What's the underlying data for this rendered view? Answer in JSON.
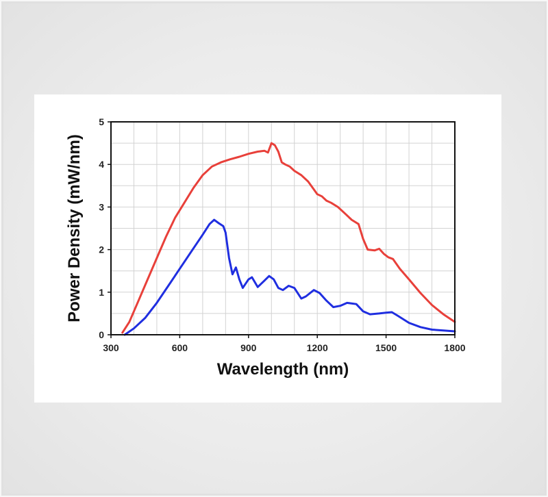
{
  "chart_data": {
    "type": "line",
    "title": "",
    "xlabel": "Wavelength (nm)",
    "ylabel": "Power Density (mW/nm)",
    "xlim": [
      300,
      1800
    ],
    "ylim": [
      0,
      5
    ],
    "xticks": [
      300,
      600,
      900,
      1200,
      1500,
      1800
    ],
    "yticks": [
      0,
      1,
      2,
      3,
      4,
      5
    ],
    "grid": true,
    "legend": "none",
    "colors": {
      "red": "#e8403a",
      "blue": "#1f2ee0"
    },
    "series": [
      {
        "color": "#e8403a",
        "points": [
          [
            350,
            0.05
          ],
          [
            380,
            0.3
          ],
          [
            420,
            0.8
          ],
          [
            460,
            1.3
          ],
          [
            500,
            1.8
          ],
          [
            540,
            2.3
          ],
          [
            580,
            2.75
          ],
          [
            620,
            3.1
          ],
          [
            660,
            3.45
          ],
          [
            700,
            3.75
          ],
          [
            740,
            3.95
          ],
          [
            780,
            4.05
          ],
          [
            820,
            4.12
          ],
          [
            860,
            4.18
          ],
          [
            900,
            4.25
          ],
          [
            940,
            4.3
          ],
          [
            970,
            4.32
          ],
          [
            985,
            4.28
          ],
          [
            1000,
            4.5
          ],
          [
            1015,
            4.45
          ],
          [
            1030,
            4.3
          ],
          [
            1045,
            4.05
          ],
          [
            1060,
            4.0
          ],
          [
            1080,
            3.95
          ],
          [
            1100,
            3.85
          ],
          [
            1130,
            3.75
          ],
          [
            1160,
            3.6
          ],
          [
            1180,
            3.45
          ],
          [
            1200,
            3.3
          ],
          [
            1220,
            3.25
          ],
          [
            1240,
            3.15
          ],
          [
            1260,
            3.1
          ],
          [
            1290,
            3.0
          ],
          [
            1320,
            2.85
          ],
          [
            1350,
            2.7
          ],
          [
            1380,
            2.6
          ],
          [
            1400,
            2.25
          ],
          [
            1420,
            2.0
          ],
          [
            1450,
            1.98
          ],
          [
            1470,
            2.02
          ],
          [
            1490,
            1.9
          ],
          [
            1510,
            1.82
          ],
          [
            1530,
            1.78
          ],
          [
            1560,
            1.55
          ],
          [
            1600,
            1.3
          ],
          [
            1650,
            0.98
          ],
          [
            1700,
            0.7
          ],
          [
            1750,
            0.48
          ],
          [
            1800,
            0.3
          ]
        ]
      },
      {
        "color": "#1f2ee0",
        "points": [
          [
            360,
            0.0
          ],
          [
            400,
            0.15
          ],
          [
            450,
            0.4
          ],
          [
            500,
            0.75
          ],
          [
            550,
            1.15
          ],
          [
            600,
            1.55
          ],
          [
            650,
            1.95
          ],
          [
            700,
            2.35
          ],
          [
            730,
            2.6
          ],
          [
            750,
            2.7
          ],
          [
            770,
            2.62
          ],
          [
            790,
            2.55
          ],
          [
            800,
            2.4
          ],
          [
            815,
            1.8
          ],
          [
            830,
            1.42
          ],
          [
            845,
            1.58
          ],
          [
            860,
            1.3
          ],
          [
            875,
            1.1
          ],
          [
            900,
            1.3
          ],
          [
            915,
            1.35
          ],
          [
            940,
            1.12
          ],
          [
            965,
            1.25
          ],
          [
            990,
            1.38
          ],
          [
            1010,
            1.3
          ],
          [
            1030,
            1.1
          ],
          [
            1050,
            1.05
          ],
          [
            1075,
            1.15
          ],
          [
            1100,
            1.1
          ],
          [
            1130,
            0.85
          ],
          [
            1150,
            0.9
          ],
          [
            1185,
            1.05
          ],
          [
            1210,
            0.98
          ],
          [
            1240,
            0.8
          ],
          [
            1270,
            0.65
          ],
          [
            1300,
            0.68
          ],
          [
            1330,
            0.75
          ],
          [
            1370,
            0.72
          ],
          [
            1400,
            0.55
          ],
          [
            1430,
            0.48
          ],
          [
            1470,
            0.5
          ],
          [
            1500,
            0.52
          ],
          [
            1525,
            0.53
          ],
          [
            1550,
            0.45
          ],
          [
            1600,
            0.28
          ],
          [
            1650,
            0.18
          ],
          [
            1700,
            0.12
          ],
          [
            1750,
            0.1
          ],
          [
            1800,
            0.08
          ]
        ]
      }
    ]
  }
}
